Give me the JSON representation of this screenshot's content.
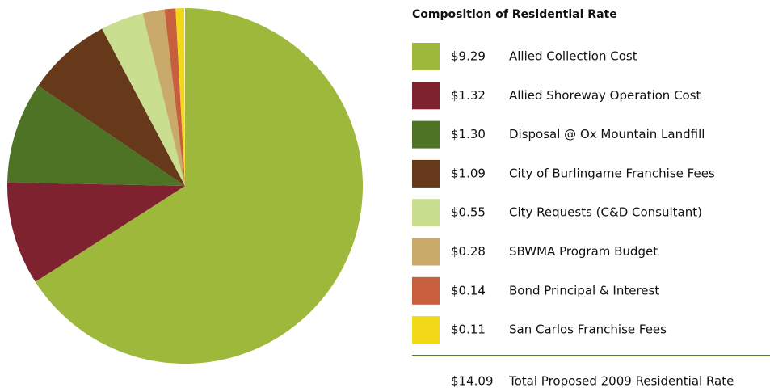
{
  "chart_data": {
    "type": "pie",
    "title": "Composition of Residential Rate",
    "categories": [
      "Allied Collection Cost",
      "Allied Shoreway Operation Cost",
      "Disposal @ Ox Mountain Landfill",
      "City of Burlingame Franchise Fees",
      "City Requests (C&D Consultant)",
      "SBWMA Program Budget",
      "Bond Principal & Interest",
      "San Carlos Franchise Fees"
    ],
    "values": [
      9.29,
      1.32,
      1.3,
      1.09,
      0.55,
      0.28,
      0.14,
      0.11
    ],
    "value_labels": [
      "$9.29",
      "$1.32",
      "$1.30",
      "$1.09",
      "$0.55",
      "$0.28",
      "$0.14",
      "$0.11"
    ],
    "colors": [
      "#9db83b",
      "#7e2230",
      "#4f7325",
      "#66391a",
      "#c9df8f",
      "#c9aa6b",
      "#c75e3d",
      "#f1d917"
    ],
    "total": {
      "value": 14.09,
      "label": "$14.09",
      "name": "Total Proposed 2009 Residential Rate"
    }
  }
}
